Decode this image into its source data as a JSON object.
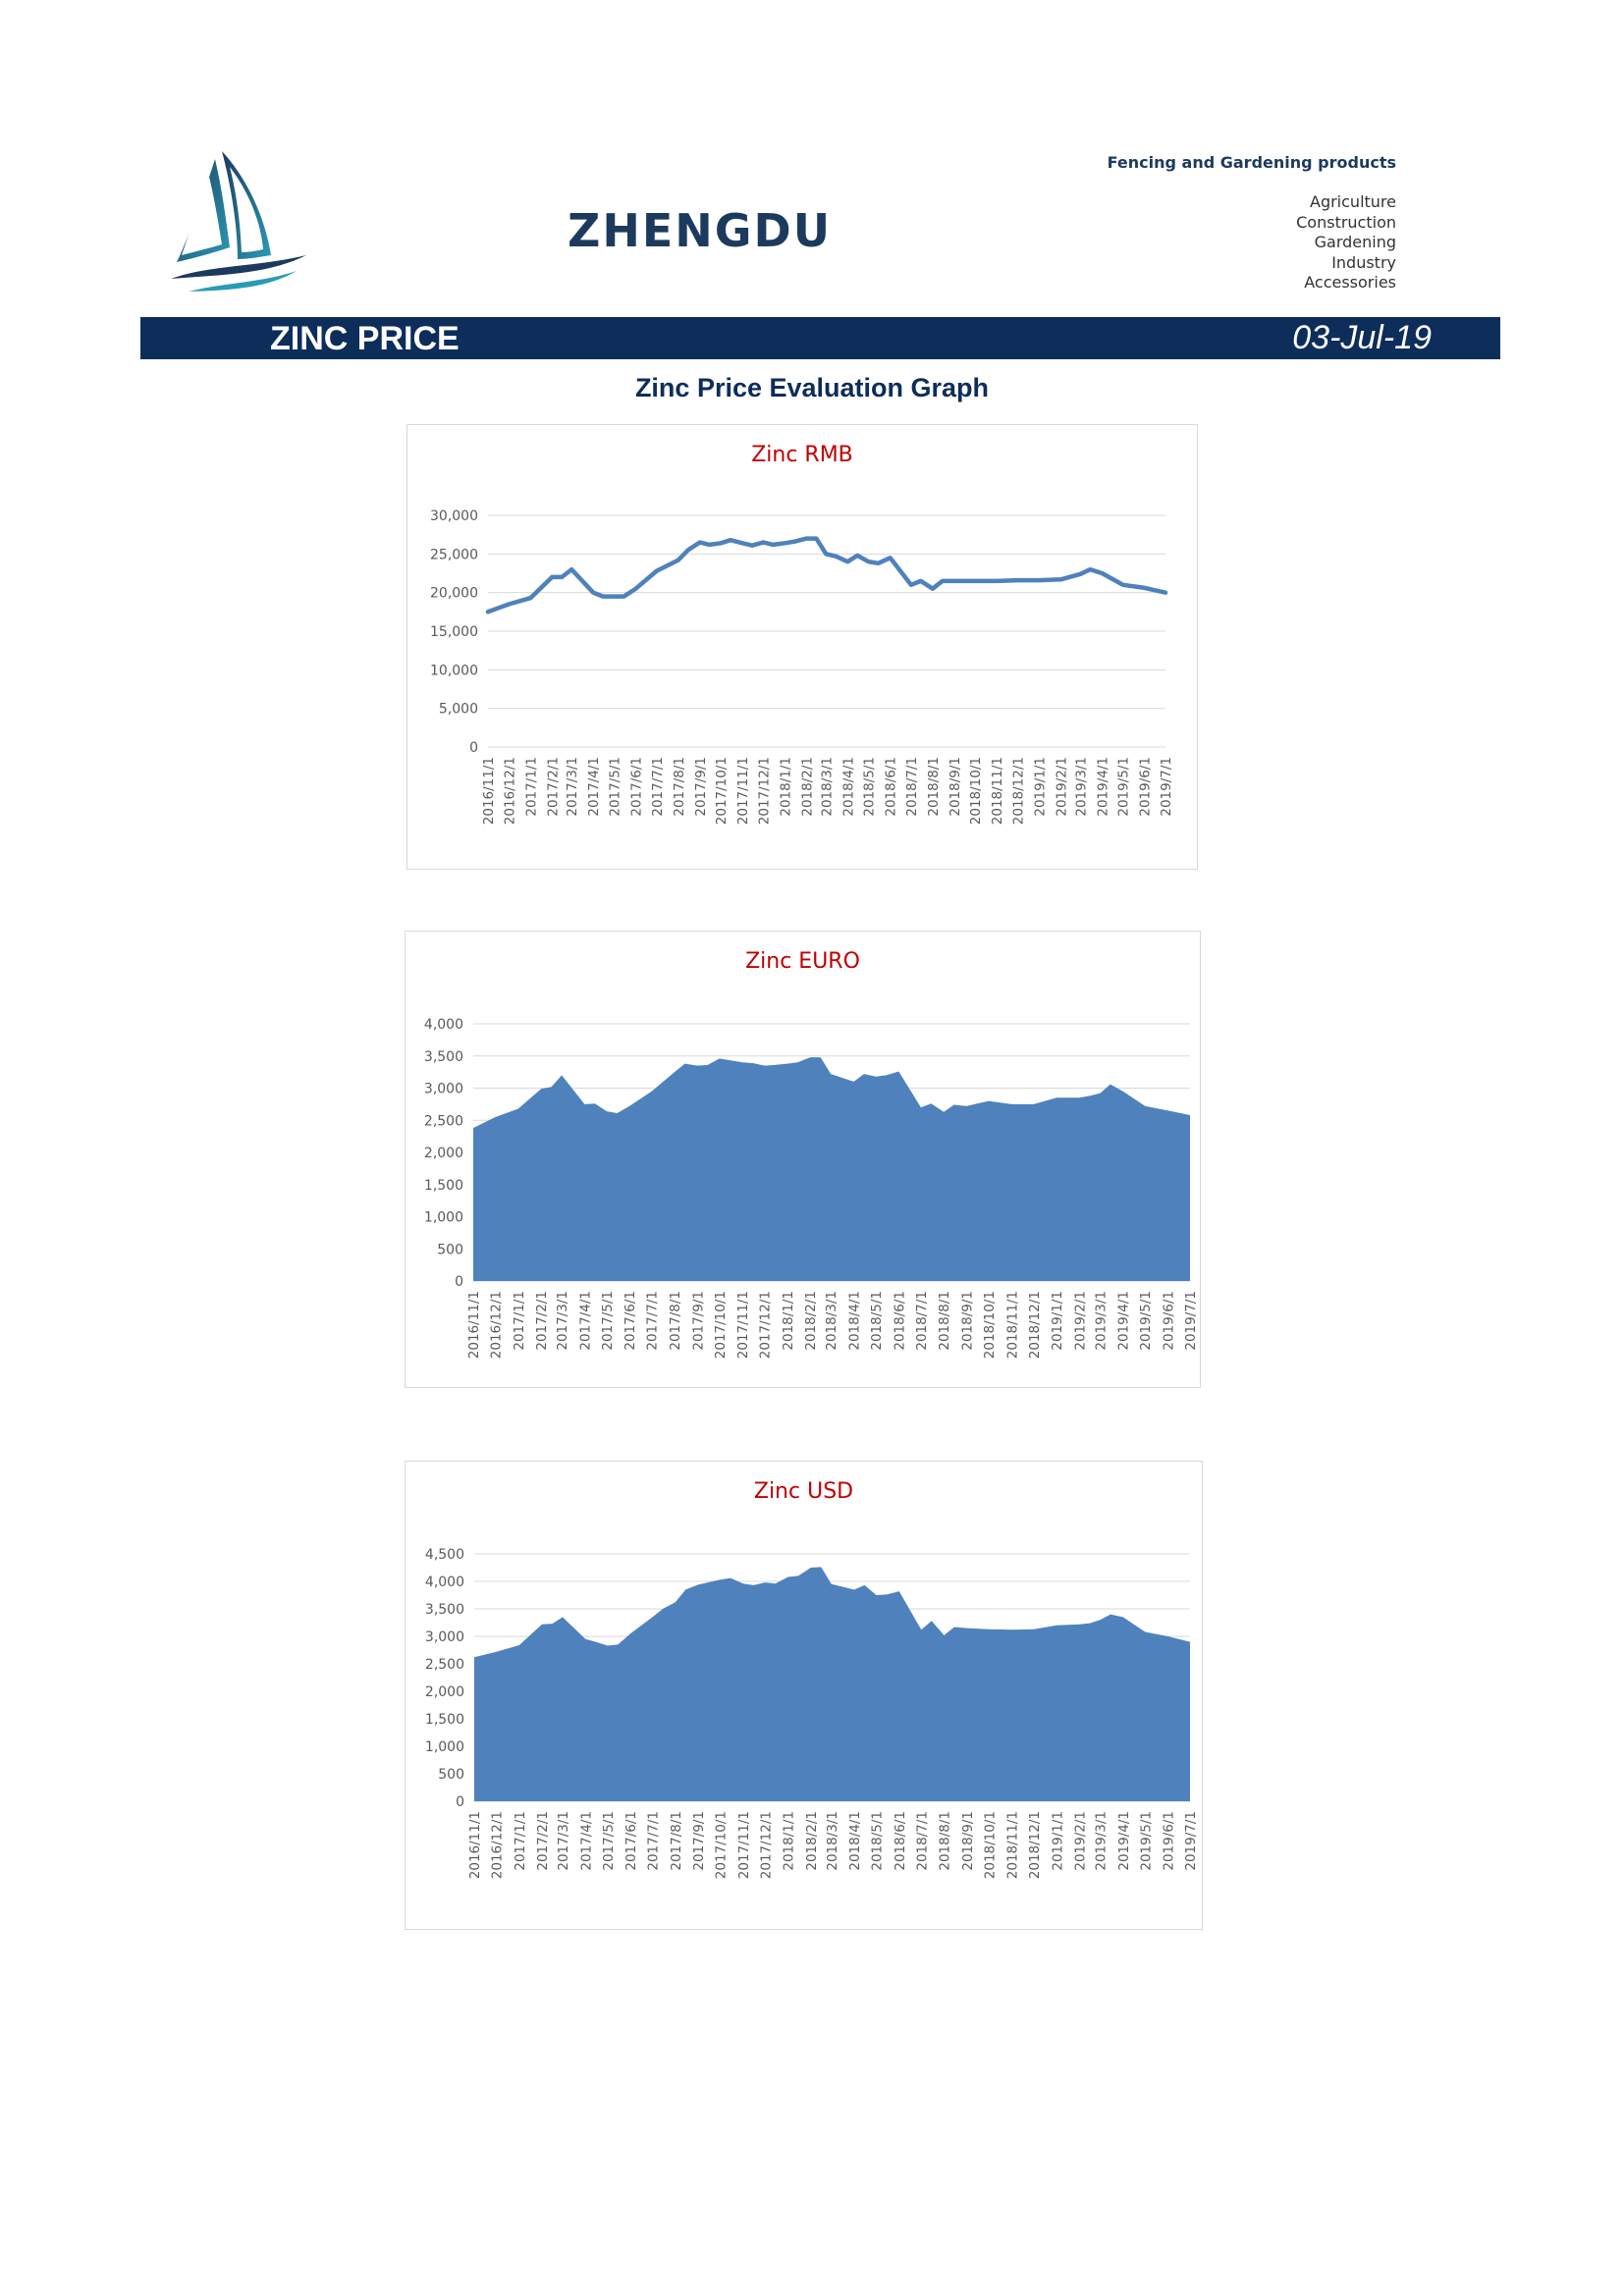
{
  "header": {
    "brand": "ZHENGDU",
    "tagline": "Fencing and Gardening products",
    "categories": [
      "Agriculture",
      "Construction",
      "Gardening",
      "Industry",
      "Accessories"
    ]
  },
  "banner": {
    "title": "ZINC PRICE",
    "date": "03-Jul-19"
  },
  "section_title": "Zinc Price Evaluation Graph",
  "colors": {
    "banner": "#0d2d5a",
    "series": "#4f81bd",
    "chart_title": "#c00000"
  },
  "chart_data": [
    {
      "type": "line",
      "title": "Zinc RMB",
      "ylim": [
        0,
        30000
      ],
      "ytick_step": 5000,
      "grid": true,
      "x_labels": [
        "2016/11/1",
        "2016/12/1",
        "2017/1/1",
        "2017/2/1",
        "2017/3/1",
        "2017/4/1",
        "2017/5/1",
        "2017/6/1",
        "2017/7/1",
        "2017/8/1",
        "2017/9/1",
        "2017/10/1",
        "2017/11/1",
        "2017/12/1",
        "2018/1/1",
        "2018/2/1",
        "2018/3/1",
        "2018/4/1",
        "2018/5/1",
        "2018/6/1",
        "2018/7/1",
        "2018/8/1",
        "2018/9/1",
        "2018/10/1",
        "2018/11/1",
        "2018/12/1",
        "2019/1/1",
        "2019/2/1",
        "2019/3/1",
        "2019/4/1",
        "2019/5/1",
        "2019/6/1",
        "2019/7/1"
      ],
      "x_range": [
        "2016/11/1",
        "2019/7/1"
      ],
      "points": [
        [
          "2016/11/1",
          17500
        ],
        [
          "2016/12/1",
          18500
        ],
        [
          "2017/1/1",
          19300
        ],
        [
          "2017/2/1",
          22000
        ],
        [
          "2017/2/15",
          22000
        ],
        [
          "2017/3/1",
          23000
        ],
        [
          "2017/4/1",
          20000
        ],
        [
          "2017/4/15",
          19500
        ],
        [
          "2017/5/15",
          19500
        ],
        [
          "2017/6/1",
          20500
        ],
        [
          "2017/7/1",
          22800
        ],
        [
          "2017/8/1",
          24200
        ],
        [
          "2017/8/15",
          25500
        ],
        [
          "2017/9/1",
          26500
        ],
        [
          "2017/9/15",
          26200
        ],
        [
          "2017/10/1",
          26400
        ],
        [
          "2017/10/15",
          26800
        ],
        [
          "2017/11/1",
          26400
        ],
        [
          "2017/11/15",
          26100
        ],
        [
          "2017/12/1",
          26500
        ],
        [
          "2017/12/15",
          26200
        ],
        [
          "2018/1/1",
          26400
        ],
        [
          "2018/1/15",
          26600
        ],
        [
          "2018/2/1",
          27000
        ],
        [
          "2018/2/15",
          27000
        ],
        [
          "2018/3/1",
          25000
        ],
        [
          "2018/3/15",
          24700
        ],
        [
          "2018/4/1",
          24000
        ],
        [
          "2018/4/15",
          24800
        ],
        [
          "2018/5/1",
          24000
        ],
        [
          "2018/5/15",
          23800
        ],
        [
          "2018/6/1",
          24500
        ],
        [
          "2018/7/1",
          21000
        ],
        [
          "2018/7/15",
          21500
        ],
        [
          "2018/8/1",
          20500
        ],
        [
          "2018/8/15",
          21500
        ],
        [
          "2018/9/1",
          21500
        ],
        [
          "2018/10/1",
          21500
        ],
        [
          "2018/11/1",
          21500
        ],
        [
          "2018/12/1",
          21600
        ],
        [
          "2019/1/1",
          21600
        ],
        [
          "2019/2/1",
          21700
        ],
        [
          "2019/3/1",
          22400
        ],
        [
          "2019/3/15",
          23000
        ],
        [
          "2019/4/1",
          22500
        ],
        [
          "2019/5/1",
          21000
        ],
        [
          "2019/6/1",
          20600
        ],
        [
          "2019/7/1",
          20000
        ]
      ]
    },
    {
      "type": "area",
      "title": "Zinc EURO",
      "ylim": [
        0,
        4000
      ],
      "ytick_step": 500,
      "grid": true,
      "x_labels": [
        "2016/11/1",
        "2016/12/1",
        "2017/1/1",
        "2017/2/1",
        "2017/3/1",
        "2017/4/1",
        "2017/5/1",
        "2017/6/1",
        "2017/7/1",
        "2017/8/1",
        "2017/9/1",
        "2017/10/1",
        "2017/11/1",
        "2017/12/1",
        "2018/1/1",
        "2018/2/1",
        "2018/3/1",
        "2018/4/1",
        "2018/5/1",
        "2018/6/1",
        "2018/7/1",
        "2018/8/1",
        "2018/9/1",
        "2018/10/1",
        "2018/11/1",
        "2018/12/1",
        "2019/1/1",
        "2019/2/1",
        "2019/3/1",
        "2019/4/1",
        "2019/5/1",
        "2019/6/1",
        "2019/7/1"
      ],
      "x_range": [
        "2016/11/1",
        "2019/7/1"
      ],
      "points": [
        [
          "2016/11/1",
          2380
        ],
        [
          "2016/12/1",
          2550
        ],
        [
          "2017/1/1",
          2680
        ],
        [
          "2017/2/1",
          2990
        ],
        [
          "2017/2/15",
          3020
        ],
        [
          "2017/3/1",
          3200
        ],
        [
          "2017/4/1",
          2750
        ],
        [
          "2017/4/15",
          2760
        ],
        [
          "2017/5/1",
          2640
        ],
        [
          "2017/5/15",
          2610
        ],
        [
          "2017/6/1",
          2720
        ],
        [
          "2017/7/1",
          2950
        ],
        [
          "2017/8/1",
          3250
        ],
        [
          "2017/8/15",
          3380
        ],
        [
          "2017/9/1",
          3350
        ],
        [
          "2017/9/15",
          3360
        ],
        [
          "2017/10/1",
          3460
        ],
        [
          "2017/11/1",
          3400
        ],
        [
          "2017/11/15",
          3390
        ],
        [
          "2017/12/1",
          3350
        ],
        [
          "2017/12/15",
          3360
        ],
        [
          "2018/1/1",
          3380
        ],
        [
          "2018/1/15",
          3400
        ],
        [
          "2018/2/1",
          3480
        ],
        [
          "2018/2/15",
          3480
        ],
        [
          "2018/3/1",
          3220
        ],
        [
          "2018/4/1",
          3100
        ],
        [
          "2018/4/15",
          3220
        ],
        [
          "2018/5/1",
          3180
        ],
        [
          "2018/5/15",
          3200
        ],
        [
          "2018/6/1",
          3260
        ],
        [
          "2018/7/1",
          2700
        ],
        [
          "2018/7/15",
          2760
        ],
        [
          "2018/8/1",
          2630
        ],
        [
          "2018/8/15",
          2740
        ],
        [
          "2018/9/1",
          2720
        ],
        [
          "2018/10/1",
          2800
        ],
        [
          "2018/11/1",
          2750
        ],
        [
          "2018/12/1",
          2750
        ],
        [
          "2019/1/1",
          2850
        ],
        [
          "2019/2/1",
          2850
        ],
        [
          "2019/2/15",
          2880
        ],
        [
          "2019/3/1",
          2920
        ],
        [
          "2019/3/15",
          3060
        ],
        [
          "2019/4/1",
          2950
        ],
        [
          "2019/5/1",
          2720
        ],
        [
          "2019/6/1",
          2650
        ],
        [
          "2019/7/1",
          2580
        ]
      ]
    },
    {
      "type": "area",
      "title": "Zinc USD",
      "ylim": [
        0,
        4500
      ],
      "ytick_step": 500,
      "grid": true,
      "x_labels": [
        "2016/11/1",
        "2016/12/1",
        "2017/1/1",
        "2017/2/1",
        "2017/3/1",
        "2017/4/1",
        "2017/5/1",
        "2017/6/1",
        "2017/7/1",
        "2017/8/1",
        "2017/9/1",
        "2017/10/1",
        "2017/11/1",
        "2017/12/1",
        "2018/1/1",
        "2018/2/1",
        "2018/3/1",
        "2018/4/1",
        "2018/5/1",
        "2018/6/1",
        "2018/7/1",
        "2018/8/1",
        "2018/9/1",
        "2018/10/1",
        "2018/11/1",
        "2018/12/1",
        "2019/1/1",
        "2019/2/1",
        "2019/3/1",
        "2019/4/1",
        "2019/5/1",
        "2019/6/1",
        "2019/7/1"
      ],
      "x_range": [
        "2016/11/1",
        "2019/7/1"
      ],
      "points": [
        [
          "2016/11/1",
          2620
        ],
        [
          "2016/12/1",
          2720
        ],
        [
          "2017/1/1",
          2840
        ],
        [
          "2017/2/1",
          3220
        ],
        [
          "2017/2/15",
          3230
        ],
        [
          "2017/3/1",
          3350
        ],
        [
          "2017/4/1",
          2950
        ],
        [
          "2017/4/15",
          2900
        ],
        [
          "2017/5/1",
          2830
        ],
        [
          "2017/5/15",
          2850
        ],
        [
          "2017/6/1",
          3050
        ],
        [
          "2017/7/1",
          3350
        ],
        [
          "2017/7/15",
          3500
        ],
        [
          "2017/8/1",
          3620
        ],
        [
          "2017/8/15",
          3850
        ],
        [
          "2017/9/1",
          3940
        ],
        [
          "2017/10/1",
          4030
        ],
        [
          "2017/10/15",
          4060
        ],
        [
          "2017/11/1",
          3960
        ],
        [
          "2017/11/15",
          3930
        ],
        [
          "2017/12/1",
          3980
        ],
        [
          "2017/12/15",
          3960
        ],
        [
          "2018/1/1",
          4080
        ],
        [
          "2018/1/15",
          4100
        ],
        [
          "2018/2/1",
          4250
        ],
        [
          "2018/2/15",
          4260
        ],
        [
          "2018/3/1",
          3950
        ],
        [
          "2018/4/1",
          3850
        ],
        [
          "2018/4/15",
          3930
        ],
        [
          "2018/5/1",
          3750
        ],
        [
          "2018/5/15",
          3760
        ],
        [
          "2018/6/1",
          3820
        ],
        [
          "2018/7/1",
          3120
        ],
        [
          "2018/7/15",
          3280
        ],
        [
          "2018/8/1",
          3020
        ],
        [
          "2018/8/15",
          3170
        ],
        [
          "2018/9/1",
          3150
        ],
        [
          "2018/10/1",
          3130
        ],
        [
          "2018/11/1",
          3120
        ],
        [
          "2018/12/1",
          3130
        ],
        [
          "2019/1/1",
          3200
        ],
        [
          "2019/2/1",
          3220
        ],
        [
          "2019/2/15",
          3240
        ],
        [
          "2019/3/1",
          3300
        ],
        [
          "2019/3/15",
          3400
        ],
        [
          "2019/4/1",
          3350
        ],
        [
          "2019/5/1",
          3080
        ],
        [
          "2019/6/1",
          3000
        ],
        [
          "2019/7/1",
          2900
        ]
      ]
    }
  ]
}
